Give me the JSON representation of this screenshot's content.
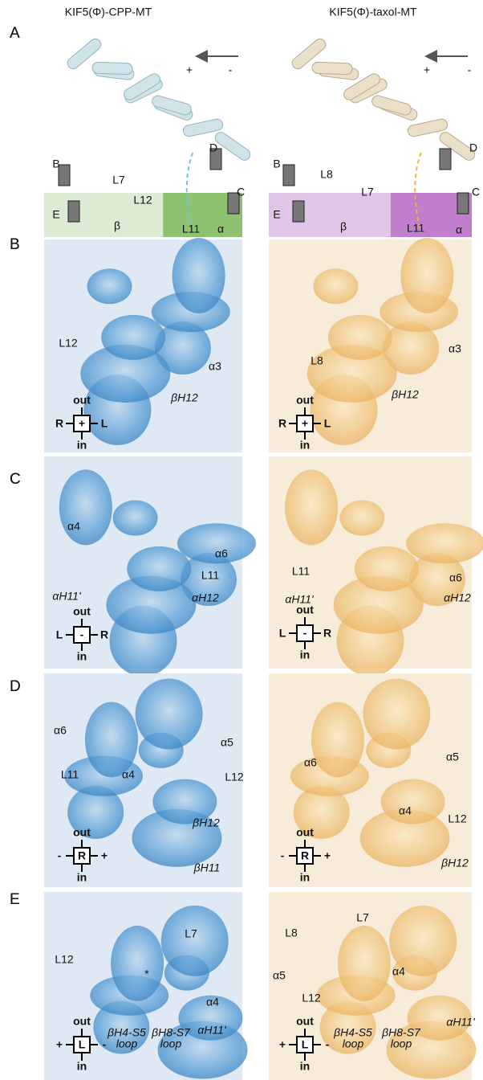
{
  "column_headers": [
    "KIF5(Φ)-CPP-MT",
    "KIF5(Φ)-taxol-MT"
  ],
  "panels": [
    {
      "letter": "A",
      "left": {
        "labels": [
          "+",
          "-",
          "B",
          "D",
          "C",
          "E",
          "L7",
          "L12",
          "L11",
          "β",
          "α"
        ]
      },
      "right": {
        "labels": [
          "+",
          "-",
          "B",
          "D",
          "C",
          "E",
          "L8",
          "L7",
          "L11",
          "β",
          "α"
        ]
      }
    },
    {
      "letter": "B",
      "left": {
        "labels": [
          "L12",
          "α3",
          "βH12"
        ],
        "compass": {
          "top": "out",
          "bottom": "in",
          "left": "R",
          "right": "L",
          "center": "+"
        }
      },
      "right": {
        "labels": [
          "α3",
          "L8",
          "βH12"
        ],
        "compass": {
          "top": "out",
          "bottom": "in",
          "left": "R",
          "right": "L",
          "center": "+"
        }
      }
    },
    {
      "letter": "C",
      "left": {
        "labels": [
          "α4",
          "α6",
          "L11",
          "αH11'",
          "αH12"
        ],
        "compass": {
          "top": "out",
          "bottom": "in",
          "left": "L",
          "right": "R",
          "center": "-"
        }
      },
      "right": {
        "labels": [
          "L11",
          "α6",
          "αH11'",
          "αH12"
        ],
        "compass": {
          "top": "out",
          "bottom": "in",
          "left": "L",
          "right": "R",
          "center": "-"
        }
      }
    },
    {
      "letter": "D",
      "left": {
        "labels": [
          "α6",
          "α5",
          "L11",
          "α4",
          "L12",
          "βH12",
          "βH11"
        ],
        "compass": {
          "top": "out",
          "bottom": "in",
          "left": "-",
          "right": "+",
          "center": "R"
        }
      },
      "right": {
        "labels": [
          "α6",
          "α5",
          "α4",
          "L12",
          "βH12"
        ],
        "compass": {
          "top": "out",
          "bottom": "in",
          "left": "-",
          "right": "+",
          "center": "R"
        }
      }
    },
    {
      "letter": "E",
      "left": {
        "labels": [
          "L7",
          "L12",
          "*",
          "α4",
          "βH4-S5",
          "loop",
          "βH8-S7",
          "loop",
          "αH11'"
        ],
        "compass": {
          "top": "out",
          "bottom": "in",
          "left": "+",
          "right": "-",
          "center": "L"
        }
      },
      "right": {
        "labels": [
          "L7",
          "L8",
          "α4",
          "α5",
          "L12",
          "αH11'",
          "βH4-S5",
          "loop",
          "βH8-S7",
          "loop"
        ],
        "compass": {
          "top": "out",
          "bottom": "in",
          "left": "+",
          "right": "-",
          "center": "L"
        }
      }
    }
  ]
}
